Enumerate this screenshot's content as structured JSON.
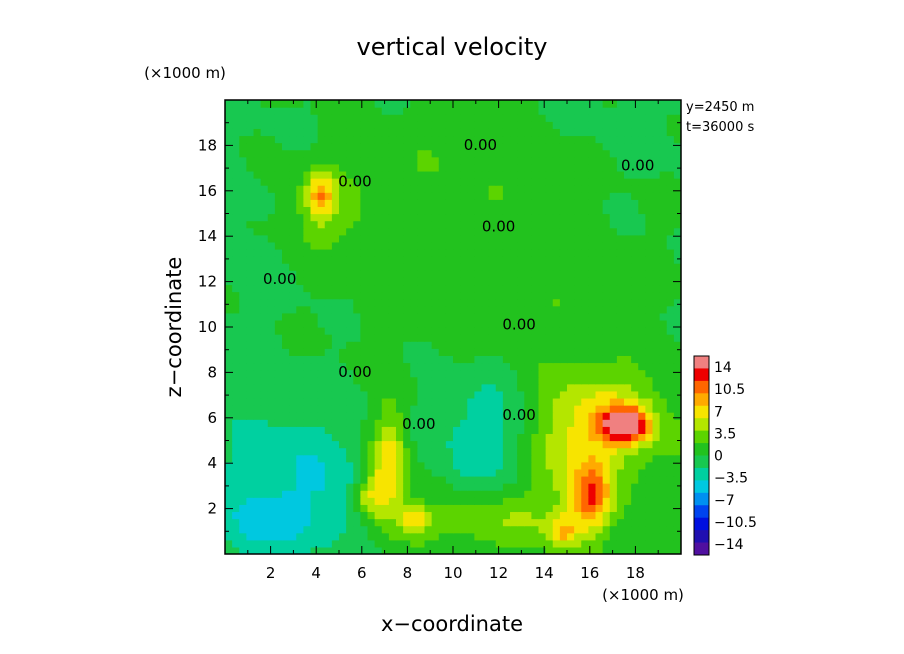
{
  "chart_data": {
    "type": "heatmap",
    "title": "vertical velocity",
    "xlabel": "x−coordinate",
    "ylabel": "z−coordinate",
    "x_unit": "(×1000 m)",
    "y_unit": "(×1000 m)",
    "xlim": [
      0,
      20
    ],
    "ylim": [
      0,
      20
    ],
    "xticks": [
      2,
      4,
      6,
      8,
      10,
      12,
      14,
      16,
      18
    ],
    "yticks": [
      2,
      4,
      6,
      8,
      10,
      12,
      14,
      16,
      18
    ],
    "info": [
      "y=2450  m",
      "t=36000  s"
    ],
    "contour_label": "0.00",
    "contour_label_positions": [
      {
        "x": 11.2,
        "y": 17.8
      },
      {
        "x": 18.1,
        "y": 16.9
      },
      {
        "x": 5.7,
        "y": 16.2
      },
      {
        "x": 12.0,
        "y": 14.2
      },
      {
        "x": 2.4,
        "y": 11.9
      },
      {
        "x": 12.9,
        "y": 9.9
      },
      {
        "x": 5.7,
        "y": 7.8
      },
      {
        "x": 8.5,
        "y": 5.5
      },
      {
        "x": 12.9,
        "y": 5.9
      }
    ],
    "colorbar": {
      "labels": [
        "14",
        "10.5",
        "7",
        "3.5",
        "0",
        "−3.5",
        "−7",
        "−10.5",
        "−14"
      ],
      "colors": [
        "#f08080",
        "#ee0000",
        "#ff6600",
        "#ffaa00",
        "#f7e400",
        "#b4e600",
        "#5cd400",
        "#22c21e",
        "#18c850",
        "#00d0a0",
        "#00c8e0",
        "#0090f0",
        "#0044f0",
        "#0010e0",
        "#2010b0",
        "#5010a0"
      ]
    },
    "features": [
      {
        "x": 2,
        "y": 15,
        "value": -1.0,
        "sx": 4,
        "sy": 3
      },
      {
        "x": 10,
        "y": 17,
        "value": 1.5,
        "sx": 5,
        "sy": 2
      },
      {
        "x": 17,
        "y": 18.5,
        "value": -0.8,
        "sx": 3,
        "sy": 2
      },
      {
        "x": 4.2,
        "y": 15.8,
        "value": 6.0,
        "sx": 0.4,
        "sy": 0.7
      },
      {
        "x": 4.2,
        "y": 15.0,
        "value": 3.0,
        "sx": 1.5,
        "sy": 1.5
      },
      {
        "x": 9,
        "y": 12,
        "value": 1.2,
        "sx": 3,
        "sy": 2
      },
      {
        "x": 15,
        "y": 12,
        "value": 0.8,
        "sx": 2,
        "sy": 2
      },
      {
        "x": 2,
        "y": 4,
        "value": -2.5,
        "sx": 2,
        "sy": 2
      },
      {
        "x": 1.5,
        "y": 1.2,
        "value": -4.0,
        "sx": 1.2,
        "sy": 1
      },
      {
        "x": 11.5,
        "y": 5,
        "value": -3.5,
        "sx": 1.5,
        "sy": 2
      },
      {
        "x": 4.8,
        "y": 2.5,
        "value": -2.5,
        "sx": 1.5,
        "sy": 2
      },
      {
        "x": 7,
        "y": 3,
        "value": 6.0,
        "sx": 0.6,
        "sy": 1.4
      },
      {
        "x": 7.3,
        "y": 5,
        "value": 4.0,
        "sx": 0.5,
        "sy": 1.5
      },
      {
        "x": 8.3,
        "y": 1.5,
        "value": 5.5,
        "sx": 0.5,
        "sy": 0.5
      },
      {
        "x": 6.2,
        "y": 2.5,
        "value": 4.0,
        "sx": 0.5,
        "sy": 0.6
      },
      {
        "x": 17.6,
        "y": 5.7,
        "value": 12.0,
        "sx": 0.7,
        "sy": 0.5
      },
      {
        "x": 17,
        "y": 6,
        "value": 4.0,
        "sx": 1.5,
        "sy": 1.3
      },
      {
        "x": 16.1,
        "y": 2.5,
        "value": 7.5,
        "sx": 0.6,
        "sy": 1.0
      },
      {
        "x": 15,
        "y": 4,
        "value": 3.0,
        "sx": 1.2,
        "sy": 2.5
      },
      {
        "x": 14.8,
        "y": 1,
        "value": 5.0,
        "sx": 0.5,
        "sy": 0.5
      },
      {
        "x": 16.5,
        "y": 5,
        "value": 2.0,
        "sx": 3,
        "sy": 3
      },
      {
        "x": 10.5,
        "y": 1.5,
        "value": 3.0,
        "sx": 1.5,
        "sy": 1
      },
      {
        "x": 13,
        "y": 1.5,
        "value": 2.0,
        "sx": 1,
        "sy": 1
      }
    ]
  }
}
